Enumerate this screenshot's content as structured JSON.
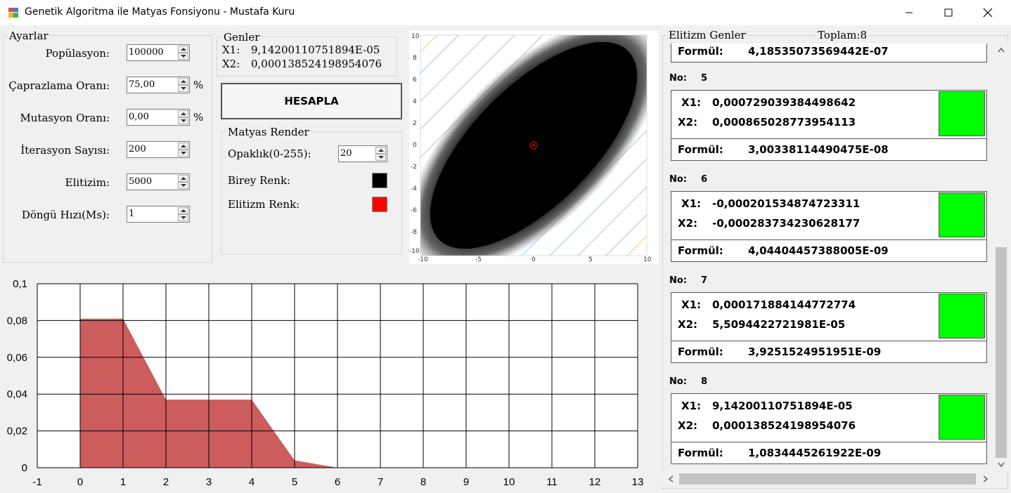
{
  "window": {
    "title": "Genetik Algoritma ile Matyas Fonsiyonu - Mustafa Kuru",
    "minimize_icon": "minimize-icon",
    "maximize_icon": "maximize-icon",
    "close_icon": "close-icon"
  },
  "settings": {
    "legend": "Ayarlar",
    "population_label": "Popülasyon:",
    "population_value": "100000",
    "crossover_label": "Çaprazlama Oranı:",
    "crossover_value": "75,00",
    "crossover_unit": "%",
    "mutation_label": "Mutasyon Oranı:",
    "mutation_value": "0,00",
    "mutation_unit": "%",
    "iteration_label": "İterasyon Sayısı:",
    "iteration_value": "200",
    "elitism_label": "Elitizim:",
    "elitism_value": "5000",
    "loop_speed_label": "Döngü Hızı(Ms):",
    "loop_speed_value": "1"
  },
  "genes": {
    "legend": "Genler",
    "x1_label": "X1:",
    "x1_value": "9,14200110751894E-05",
    "x2_label": "X2:",
    "x2_value": "0,000138524198954076"
  },
  "calculate_button": "HESAPLA",
  "render": {
    "legend": "Matyas Render",
    "opacity_label": "Opaklık(0-255):",
    "opacity_value": "20",
    "individual_color_label": "Birey Renk:",
    "individual_color": "#000000",
    "elitism_color_label": "Elitizm Renk:",
    "elitism_color": "#ff0000"
  },
  "scatter": {
    "y_ticks": [
      "10",
      "8",
      "6",
      "4",
      "2",
      "0",
      "-2",
      "-4",
      "-6",
      "-8",
      "-10"
    ],
    "x_ticks": [
      "-10",
      "-5",
      "0",
      "5",
      "10"
    ]
  },
  "chart_data": {
    "type": "area",
    "x": [
      0,
      1,
      2,
      3,
      4,
      5,
      6,
      7,
      8,
      9,
      10,
      11,
      12,
      13
    ],
    "values": [
      0.081,
      0.081,
      0.037,
      0.037,
      0.037,
      0.004,
      0.0,
      0.0,
      0.0,
      0.0,
      0.0,
      0.0,
      0.0,
      0.0
    ],
    "x_tick_labels": [
      "-1",
      "0",
      "1",
      "2",
      "3",
      "4",
      "5",
      "6",
      "7",
      "8",
      "9",
      "10",
      "11",
      "12",
      "13"
    ],
    "y_tick_labels": [
      "0",
      "0,02",
      "0,04",
      "0,06",
      "0,08",
      "0,1"
    ],
    "xlim": [
      -1,
      13
    ],
    "ylim": [
      0,
      0.1
    ],
    "grid": true,
    "fill_color": "#cd5c5c"
  },
  "elitism": {
    "legend": "Elitizm Genler",
    "total_label": "Toplam:8",
    "first_formula_label": "Formül:",
    "first_formula_value": "4,18535073569442E-07",
    "items": [
      {
        "no_label": "No:",
        "no": "5",
        "x1_label": "X1:",
        "x1": "0,000729039384498642",
        "x2_label": "X2:",
        "x2": "0,000865028773954113",
        "formula_label": "Formül:",
        "formula": "3,00338114490475E-08",
        "color": "#00ff00"
      },
      {
        "no_label": "No:",
        "no": "6",
        "x1_label": "X1:",
        "x1": "-0,000201534874723311",
        "x2_label": "X2:",
        "x2": "-0,000283734230628177",
        "formula_label": "Formül:",
        "formula": "4,04404457388005E-09",
        "color": "#00ff00"
      },
      {
        "no_label": "No:",
        "no": "7",
        "x1_label": "X1:",
        "x1": "0,000171884144772774",
        "x2_label": "X2:",
        "x2": "5,5094422721981E-05",
        "formula_label": "Formül:",
        "formula": "3,9251524951951E-09",
        "color": "#00ff00"
      },
      {
        "no_label": "No:",
        "no": "8",
        "x1_label": "X1:",
        "x1": "9,14200110751894E-05",
        "x2_label": "X2:",
        "x2": "0,000138524198954076",
        "formula_label": "Formül:",
        "formula": "1,0834445261922E-09",
        "color": "#00ff00"
      }
    ]
  }
}
